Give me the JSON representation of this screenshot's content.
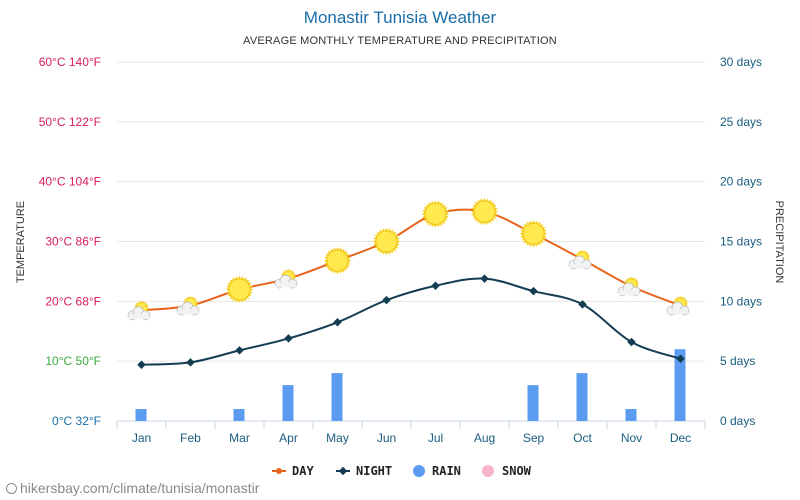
{
  "title": "Monastir Tunisia Weather",
  "subtitle": "AVERAGE MONTHLY TEMPERATURE AND PRECIPITATION",
  "footer": "hikersbay.com/climate/tunisia/monastir",
  "chart_data": {
    "type": "line",
    "categories": [
      "Jan",
      "Feb",
      "Mar",
      "Apr",
      "May",
      "Jun",
      "Jul",
      "Aug",
      "Sep",
      "Oct",
      "Nov",
      "Dec"
    ],
    "left_axis": {
      "label": "TEMPERATURE",
      "range": [
        0,
        60
      ],
      "ticks": [
        {
          "value": 0,
          "label": "0°C 32°F",
          "color": "#1a6ea8"
        },
        {
          "value": 10,
          "label": "10°C 50°F",
          "color": "#3aa83a"
        },
        {
          "value": 20,
          "label": "20°C 68°F",
          "color": "#d81b60"
        },
        {
          "value": 30,
          "label": "30°C 86°F",
          "color": "#d81b60"
        },
        {
          "value": 40,
          "label": "40°C 104°F",
          "color": "#d81b60"
        },
        {
          "value": 50,
          "label": "50°C 122°F",
          "color": "#d81b60"
        },
        {
          "value": 60,
          "label": "60°C 140°F",
          "color": "#d81b60"
        }
      ]
    },
    "right_axis": {
      "label": "PRECIPITATION",
      "range": [
        0,
        30
      ],
      "ticks": [
        {
          "value": 0,
          "label": "0 days"
        },
        {
          "value": 5,
          "label": "5 days"
        },
        {
          "value": 10,
          "label": "10 days"
        },
        {
          "value": 15,
          "label": "15 days"
        },
        {
          "value": 20,
          "label": "20 days"
        },
        {
          "value": 25,
          "label": "25 days"
        },
        {
          "value": 30,
          "label": "30 days"
        }
      ]
    },
    "grid": true,
    "legend_position": "bottom",
    "series": [
      {
        "name": "DAY",
        "type": "line",
        "color": "#e8641a",
        "axis": "left",
        "values": [
          18.5,
          19.3,
          22.0,
          23.8,
          26.8,
          30.0,
          34.6,
          35.0,
          31.3,
          27.0,
          22.5,
          19.3
        ]
      },
      {
        "name": "NIGHT",
        "type": "line",
        "color": "#123d52",
        "axis": "left",
        "values": [
          9.4,
          9.8,
          11.8,
          13.8,
          16.5,
          20.2,
          22.6,
          23.8,
          21.7,
          19.5,
          13.2,
          10.4
        ]
      },
      {
        "name": "RAIN",
        "type": "bar",
        "color": "#5b9cf0",
        "axis": "right",
        "values": [
          1,
          0,
          1,
          3,
          4,
          0,
          0,
          0,
          3,
          4,
          1,
          6
        ]
      },
      {
        "name": "SNOW",
        "type": "bar",
        "color": "#f7b6c8",
        "axis": "right",
        "values": [
          0,
          0,
          0,
          0,
          0,
          0,
          0,
          0,
          0,
          0,
          0,
          0
        ]
      }
    ],
    "weather_icons": [
      "partly-cloudy-icon",
      "partly-cloudy-icon",
      "sun-icon",
      "partly-cloudy-icon",
      "sun-icon",
      "sun-icon",
      "sun-icon",
      "sun-icon",
      "sun-icon",
      "partly-cloudy-icon",
      "partly-cloudy-icon",
      "partly-cloudy-icon"
    ]
  }
}
